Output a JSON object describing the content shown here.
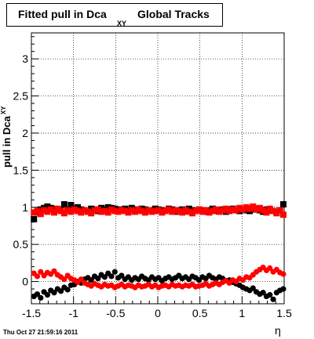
{
  "title": {
    "main": "Fitted pull in Dca",
    "subscript": "XY",
    "rest": "Global Tracks"
  },
  "footer": "Thu Oct 27 21:59:16 2011",
  "chart_data": {
    "type": "scatter",
    "xlabel": "η",
    "ylabel": "pull in Dca",
    "ylabel_subscript": "XY",
    "xlim": [
      -1.5,
      1.5
    ],
    "ylim": [
      -0.3,
      3.35
    ],
    "grid": true,
    "x_ticks": [
      "-1.5",
      "-1",
      "-0.5",
      "0",
      "0.5",
      "1",
      "1.5"
    ],
    "y_ticks": [
      "0",
      "0.5",
      "1",
      "1.5",
      "2",
      "2.5",
      "3"
    ],
    "series": [
      {
        "color": "#000000",
        "marker": "square",
        "x": [
          -1.47,
          -1.43,
          -1.39,
          -1.35,
          -1.31,
          -1.27,
          -1.23,
          -1.19,
          -1.15,
          -1.11,
          -1.07,
          -1.03,
          -0.99,
          -0.95,
          -0.91,
          -0.87,
          -0.83,
          -0.79,
          -0.75,
          -0.71,
          -0.67,
          -0.63,
          -0.59,
          -0.55,
          -0.51,
          -0.47,
          -0.43,
          -0.39,
          -0.35,
          -0.31,
          -0.27,
          -0.23,
          -0.19,
          -0.15,
          -0.11,
          -0.07,
          -0.03,
          0.01,
          0.05,
          0.09,
          0.13,
          0.17,
          0.21,
          0.25,
          0.29,
          0.33,
          0.37,
          0.41,
          0.45,
          0.49,
          0.53,
          0.57,
          0.61,
          0.65,
          0.69,
          0.73,
          0.77,
          0.81,
          0.85,
          0.89,
          0.93,
          0.97,
          1.01,
          1.05,
          1.09,
          1.13,
          1.17,
          1.21,
          1.25,
          1.29,
          1.33,
          1.37,
          1.41,
          1.45,
          1.49
        ],
        "y": [
          0.84,
          0.93,
          0.97,
          0.99,
          1.01,
          0.99,
          0.98,
          0.97,
          0.96,
          1.04,
          0.97,
          1.03,
          0.98,
          1.0,
          0.97,
          0.96,
          0.94,
          0.98,
          0.97,
          0.95,
          0.99,
          0.97,
          1.0,
          0.99,
          0.98,
          0.97,
          0.96,
          0.98,
          0.95,
          0.99,
          0.97,
          0.96,
          0.98,
          0.97,
          0.96,
          0.95,
          0.98,
          0.97,
          0.96,
          0.95,
          0.98,
          0.97,
          0.94,
          0.96,
          0.97,
          0.95,
          0.98,
          0.96,
          0.95,
          0.97,
          0.96,
          0.94,
          0.96,
          0.98,
          0.95,
          0.96,
          0.97,
          0.94,
          0.96,
          0.98,
          0.96,
          0.95,
          0.97,
          0.96,
          0.95,
          0.97,
          0.98,
          0.96,
          0.94,
          0.97,
          0.96,
          0.95,
          0.93,
          0.96,
          1.04
        ]
      },
      {
        "color": "#ff0000",
        "marker": "square",
        "x": [
          -1.47,
          -1.43,
          -1.39,
          -1.35,
          -1.31,
          -1.27,
          -1.23,
          -1.19,
          -1.15,
          -1.11,
          -1.07,
          -1.03,
          -0.99,
          -0.95,
          -0.91,
          -0.87,
          -0.83,
          -0.79,
          -0.75,
          -0.71,
          -0.67,
          -0.63,
          -0.59,
          -0.55,
          -0.51,
          -0.47,
          -0.43,
          -0.39,
          -0.35,
          -0.31,
          -0.27,
          -0.23,
          -0.19,
          -0.15,
          -0.11,
          -0.07,
          -0.03,
          0.01,
          0.05,
          0.09,
          0.13,
          0.17,
          0.21,
          0.25,
          0.29,
          0.33,
          0.37,
          0.41,
          0.45,
          0.49,
          0.53,
          0.57,
          0.61,
          0.65,
          0.69,
          0.73,
          0.77,
          0.81,
          0.85,
          0.89,
          0.93,
          0.97,
          1.01,
          1.05,
          1.09,
          1.13,
          1.17,
          1.21,
          1.25,
          1.29,
          1.33,
          1.37,
          1.41,
          1.45,
          1.49
        ],
        "y": [
          0.93,
          0.95,
          0.91,
          0.96,
          0.94,
          0.97,
          0.93,
          0.98,
          0.95,
          0.92,
          0.96,
          0.94,
          0.97,
          0.95,
          0.93,
          0.96,
          0.94,
          0.92,
          0.96,
          0.97,
          0.94,
          0.95,
          0.93,
          0.97,
          0.95,
          0.94,
          0.96,
          0.95,
          0.93,
          0.96,
          0.94,
          0.97,
          0.95,
          0.93,
          0.96,
          0.94,
          0.95,
          0.96,
          0.93,
          0.95,
          0.97,
          0.94,
          0.96,
          0.95,
          0.93,
          0.96,
          0.94,
          0.92,
          0.95,
          0.97,
          0.94,
          0.96,
          0.93,
          0.95,
          0.97,
          0.94,
          0.96,
          0.98,
          0.95,
          0.97,
          0.96,
          0.99,
          0.97,
          1.0,
          0.98,
          1.01,
          0.97,
          0.99,
          0.96,
          0.93,
          0.98,
          0.95,
          0.92,
          0.96,
          0.9
        ]
      },
      {
        "color": "#000000",
        "marker": "circle",
        "x": [
          -1.47,
          -1.43,
          -1.39,
          -1.35,
          -1.31,
          -1.27,
          -1.23,
          -1.19,
          -1.15,
          -1.11,
          -1.07,
          -1.03,
          -0.99,
          -0.95,
          -0.91,
          -0.87,
          -0.83,
          -0.79,
          -0.75,
          -0.71,
          -0.67,
          -0.63,
          -0.59,
          -0.55,
          -0.51,
          -0.47,
          -0.43,
          -0.39,
          -0.35,
          -0.31,
          -0.27,
          -0.23,
          -0.19,
          -0.15,
          -0.11,
          -0.07,
          -0.03,
          0.01,
          0.05,
          0.09,
          0.13,
          0.17,
          0.21,
          0.25,
          0.29,
          0.33,
          0.37,
          0.41,
          0.45,
          0.49,
          0.53,
          0.57,
          0.61,
          0.65,
          0.69,
          0.73,
          0.77,
          0.81,
          0.85,
          0.89,
          0.93,
          0.97,
          1.01,
          1.05,
          1.09,
          1.13,
          1.17,
          1.21,
          1.25,
          1.29,
          1.33,
          1.37,
          1.41,
          1.45,
          1.49
        ],
        "y": [
          -0.2,
          -0.17,
          -0.22,
          -0.14,
          -0.18,
          -0.12,
          -0.15,
          -0.1,
          -0.13,
          -0.08,
          -0.11,
          -0.05,
          -0.04,
          0.0,
          -0.02,
          0.03,
          0.05,
          0.02,
          0.07,
          0.04,
          0.09,
          0.06,
          0.11,
          0.07,
          0.13,
          0.05,
          0.08,
          0.03,
          0.06,
          0.02,
          0.05,
          0.03,
          0.07,
          0.04,
          0.02,
          0.06,
          0.03,
          0.05,
          0.01,
          0.04,
          0.06,
          0.03,
          0.05,
          0.08,
          0.04,
          0.06,
          0.03,
          0.07,
          0.05,
          0.02,
          0.06,
          0.04,
          0.08,
          0.05,
          0.03,
          0.06,
          0.04,
          0.01,
          0.02,
          -0.01,
          -0.03,
          -0.05,
          -0.08,
          -0.1,
          -0.12,
          -0.09,
          -0.14,
          -0.17,
          -0.15,
          -0.2,
          -0.18,
          -0.24,
          -0.15,
          -0.12,
          -0.1
        ]
      },
      {
        "color": "#ff0000",
        "marker": "circle",
        "x": [
          -1.47,
          -1.43,
          -1.39,
          -1.35,
          -1.31,
          -1.27,
          -1.23,
          -1.19,
          -1.15,
          -1.11,
          -1.07,
          -1.03,
          -0.99,
          -0.95,
          -0.91,
          -0.87,
          -0.83,
          -0.79,
          -0.75,
          -0.71,
          -0.67,
          -0.63,
          -0.59,
          -0.55,
          -0.51,
          -0.47,
          -0.43,
          -0.39,
          -0.35,
          -0.31,
          -0.27,
          -0.23,
          -0.19,
          -0.15,
          -0.11,
          -0.07,
          -0.03,
          0.01,
          0.05,
          0.09,
          0.13,
          0.17,
          0.21,
          0.25,
          0.29,
          0.33,
          0.37,
          0.41,
          0.45,
          0.49,
          0.53,
          0.57,
          0.61,
          0.65,
          0.69,
          0.73,
          0.77,
          0.81,
          0.85,
          0.89,
          0.93,
          0.97,
          1.01,
          1.05,
          1.09,
          1.13,
          1.17,
          1.21,
          1.25,
          1.29,
          1.33,
          1.37,
          1.41,
          1.45,
          1.49
        ],
        "y": [
          0.11,
          0.07,
          0.13,
          0.08,
          0.12,
          0.1,
          0.14,
          0.09,
          0.06,
          0.03,
          0.08,
          0.04,
          0.02,
          -0.01,
          0.03,
          -0.02,
          -0.04,
          -0.06,
          -0.03,
          -0.05,
          -0.07,
          -0.04,
          -0.06,
          -0.05,
          -0.08,
          -0.06,
          -0.04,
          -0.07,
          -0.05,
          -0.06,
          -0.08,
          -0.05,
          -0.07,
          -0.06,
          -0.04,
          -0.07,
          -0.05,
          -0.08,
          -0.06,
          -0.05,
          -0.07,
          -0.04,
          -0.06,
          -0.05,
          -0.07,
          -0.05,
          -0.06,
          -0.04,
          -0.07,
          -0.06,
          -0.05,
          -0.03,
          -0.06,
          -0.04,
          -0.02,
          -0.04,
          -0.01,
          0.01,
          -0.02,
          0.02,
          0.0,
          0.04,
          0.02,
          0.06,
          0.05,
          0.09,
          0.13,
          0.16,
          0.19,
          0.15,
          0.18,
          0.13,
          0.16,
          0.12,
          0.1
        ]
      }
    ]
  }
}
